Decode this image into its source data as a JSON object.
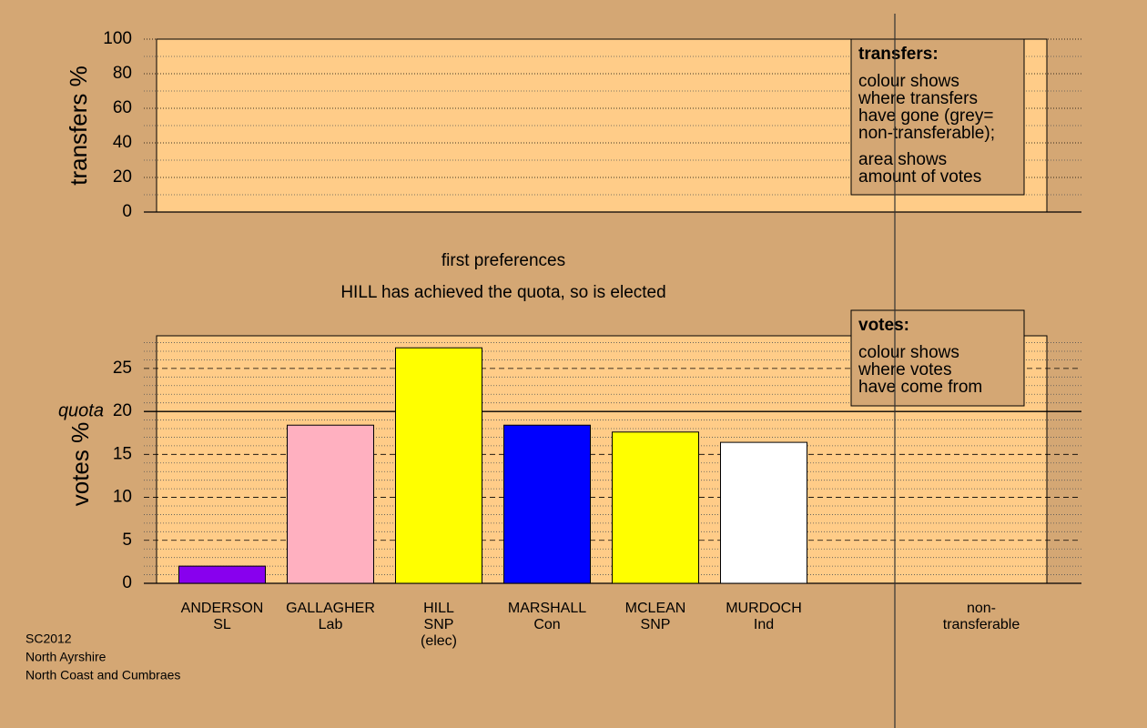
{
  "chart_data": [
    {
      "type": "bar",
      "ylabel": "transfers %",
      "ylim": [
        0,
        100
      ],
      "yticks": [
        0,
        20,
        40,
        60,
        80,
        100
      ],
      "minor_step": 10,
      "legend": {
        "title": "transfers:",
        "paragraphs": [
          [
            "colour shows",
            "where transfers",
            "have gone (grey=",
            "non-transferable);"
          ],
          [
            "area shows",
            "amount of votes"
          ]
        ]
      }
    },
    {
      "type": "bar",
      "ylabel": "votes %",
      "ylim": [
        0,
        28.8
      ],
      "yticks": [
        0,
        5,
        10,
        15,
        20,
        25
      ],
      "minor_step": 1,
      "quota": 20,
      "quota_label": "quota",
      "headings": [
        "first preferences",
        "HILL has achieved the quota, so is elected"
      ],
      "categories": [
        [
          "ANDERSON",
          "SL"
        ],
        [
          "GALLAGHER",
          "Lab"
        ],
        [
          "HILL",
          "SNP",
          "(elec)"
        ],
        [
          "MARSHALL",
          "Con"
        ],
        [
          "MCLEAN",
          "SNP"
        ],
        [
          "MURDOCH",
          "Ind"
        ],
        [
          "non-",
          "transferable"
        ]
      ],
      "values": [
        2.0,
        18.4,
        27.4,
        18.4,
        17.6,
        16.4,
        null
      ],
      "colors": [
        "#8800ee",
        "#ffb0c0",
        "#ffff00",
        "#0000ff",
        "#ffff00",
        "#ffffff",
        null
      ],
      "legend": {
        "title": "votes:",
        "paragraphs": [
          [
            "colour shows",
            "where votes",
            "have come from"
          ]
        ]
      }
    }
  ],
  "footer": [
    "SC2012",
    "North Ayrshire",
    "North Coast and Cumbraes"
  ]
}
